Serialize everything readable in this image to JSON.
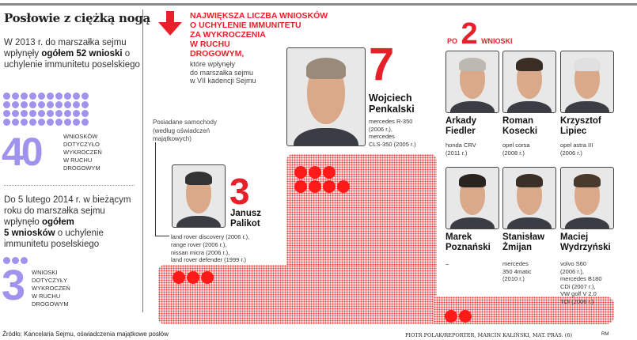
{
  "title": "Posłowie z ciężką nogą",
  "left": {
    "para1": {
      "pre": "W 2013 r. do marszałka sejmu wpłynęły ",
      "bold": "ogółem 52 wnioski",
      "post": " o uchylenie immunitetu poselskiego"
    },
    "dots1": 40,
    "num1": "40",
    "caption1": [
      "WNIOSKÓW",
      "DOTYCZYŁO",
      "WYKROCZEŃ",
      "W RUCHU",
      "DROGOWYM"
    ],
    "para2": {
      "pre": "Do 5 lutego 2014 r. w bieżącym roku do marszałka sejmu wpłynęło ",
      "bold1": "ogółem",
      "bold2": "5 wniosków",
      "post": " o uchylenie immunitetu poselskiego"
    },
    "dots2": 3,
    "num2": "3",
    "caption2": [
      "WNIOSKI",
      "DOTYCZYŁY",
      "WYKROCZEŃ",
      "W RUCHU",
      "DROGOWYM"
    ]
  },
  "headline": [
    "NAJWIĘKSZA LICZBA WNIOSKÓW",
    "O UCHYLENIE IMMUNITETU",
    "ZA WYKROCZENIA",
    "W RUCHU",
    "DROGOWYM,"
  ],
  "subhead": [
    "które wpłynęły",
    "do marszałka sejmu",
    "w VII kadencji Sejmu"
  ],
  "cars_label": [
    "Posiadane samochody",
    "(według oświadczeń",
    "majątkowych)"
  ],
  "colors": {
    "accent": "#e8202a",
    "purple": "#9f93ee"
  },
  "top": {
    "count": "7",
    "name": [
      "Wojciech",
      "Penkalski"
    ],
    "cars": [
      "mercedes R-350",
      "(2006 r.),",
      "mercedes",
      "CLS-350 (2005 r.)"
    ]
  },
  "second": {
    "count": "3",
    "name": [
      "Janusz",
      "Palikot"
    ],
    "cars": [
      "land rover discovery (2006 r.),",
      "range rover (2006 r.),",
      "nissan micra (2006 r.),",
      "land rover defender (1999 r.)"
    ]
  },
  "group": {
    "pre": "PO",
    "count": "2",
    "post": "WNIOSKI",
    "members": [
      {
        "name": [
          "Arkady",
          "Fiedler"
        ],
        "cars": [
          "honda CRV",
          "(2011 r.)"
        ]
      },
      {
        "name": [
          "Roman",
          "Kosecki"
        ],
        "cars": [
          "opel corsa",
          "(2008 r.)"
        ]
      },
      {
        "name": [
          "Krzysztof",
          "Lipiec"
        ],
        "cars": [
          "opel astra III",
          "(2006 r.)"
        ]
      },
      {
        "name": [
          "Marek",
          "Poznański"
        ],
        "cars": [
          "–"
        ]
      },
      {
        "name": [
          "Stanisław",
          "Żmijan"
        ],
        "cars": [
          "mercedes",
          "350 4matic",
          "(2010 r.)"
        ]
      },
      {
        "name": [
          "Maciej",
          "Wydrzyński"
        ],
        "cars": [
          "volvo S60",
          "(2006 r.),",
          "mercedes B180",
          "CDi (2007 r.),",
          "VW golf V 2.0",
          "TDI (2006 r.)"
        ]
      }
    ]
  },
  "footer": {
    "source": "Źródło: Kancelaria Sejmu, oświadczenia majątkowe posłów",
    "credits": "PIOTR POLAK/REPORTER, MARCIN KALIŃSKI, MAT. PRAS. (6)",
    "author": "RM"
  }
}
